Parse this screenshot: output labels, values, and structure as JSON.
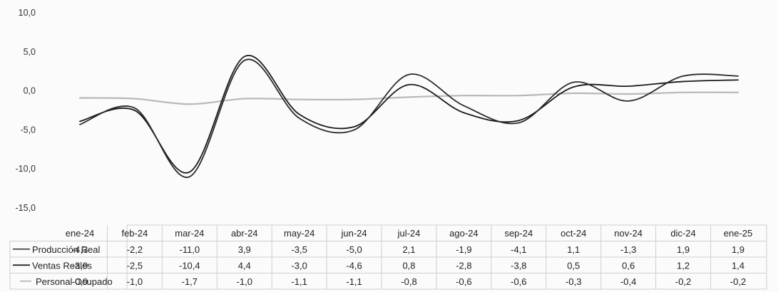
{
  "chart_data": {
    "type": "line",
    "ylabel": "",
    "ylim": [
      -15,
      10
    ],
    "yticks": [
      "10,0",
      "5,0",
      "0,0",
      "-5,0",
      "-10,0",
      "-15,0"
    ],
    "ytick_values": [
      10,
      5,
      0,
      -5,
      -10,
      -15
    ],
    "categories": [
      "ene-24",
      "feb-24",
      "mar-24",
      "abr-24",
      "may-24",
      "jun-24",
      "jul-24",
      "ago-24",
      "sep-24",
      "oct-24",
      "nov-24",
      "dic-24",
      "ene-25"
    ],
    "grid": false,
    "legend": "data-table-left",
    "series": [
      {
        "name": "Producción Real",
        "color": "#2a2a2a",
        "values": [
          -4.3,
          -2.2,
          -11.0,
          3.9,
          -3.5,
          -5.0,
          2.1,
          -1.9,
          -4.1,
          1.1,
          -1.3,
          1.9,
          1.9
        ],
        "labels": [
          "-4,3",
          "-2,2",
          "-11,0",
          "3,9",
          "-3,5",
          "-5,0",
          "2,1",
          "-1,9",
          "-4,1",
          "1,1",
          "-1,3",
          "1,9",
          "1,9"
        ]
      },
      {
        "name": "Ventas Reales",
        "color": "#1a1a1a",
        "values": [
          -3.9,
          -2.5,
          -10.4,
          4.4,
          -3.0,
          -4.6,
          0.8,
          -2.8,
          -3.8,
          0.5,
          0.6,
          1.2,
          1.4
        ],
        "labels": [
          "-3,9",
          "-2,5",
          "-10,4",
          "4,4",
          "-3,0",
          "-4,6",
          "0,8",
          "-2,8",
          "-3,8",
          "0,5",
          "0,6",
          "1,2",
          "1,4"
        ]
      },
      {
        "name": "Personal Ocupado",
        "color": "#b8b8b8",
        "values": [
          -0.9,
          -1.0,
          -1.7,
          -1.0,
          -1.1,
          -1.1,
          -0.8,
          -0.6,
          -0.6,
          -0.3,
          -0.4,
          -0.2,
          -0.2
        ],
        "labels": [
          "-0,9",
          "-1,0",
          "-1,7",
          "-1,0",
          "-1,1",
          "-1,1",
          "-0,8",
          "-0,6",
          "-0,6",
          "-0,3",
          "-0,4",
          "-0,2",
          "-0,2"
        ]
      }
    ]
  }
}
